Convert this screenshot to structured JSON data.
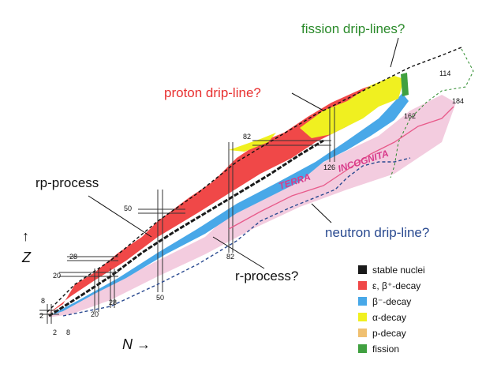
{
  "labels": {
    "fission_driplines": "fission drip-lines?",
    "proton_dripline": "proton drip-line?",
    "neutron_dripline": "neutron drip-line?",
    "rp_process": "rp-process",
    "r_process": "r-process?",
    "terra": "TERRA",
    "incognita": "INCOGNITA",
    "z_axis": "Z",
    "n_axis": "N →",
    "up_arrow": "↑"
  },
  "magic_labels": {
    "z": [
      "2",
      "8",
      "20",
      "28",
      "50",
      "82",
      "114"
    ],
    "n": [
      "2",
      "8",
      "20",
      "28",
      "50",
      "82",
      "126",
      "162",
      "184"
    ]
  },
  "legend": [
    {
      "label": "stable nuclei",
      "color": "#1a1a1a"
    },
    {
      "label": "ε, β⁺-decay",
      "color": "#f04848"
    },
    {
      "label": "β⁻-decay",
      "color": "#48a8e8"
    },
    {
      "label": "α-decay",
      "color": "#f0f020"
    },
    {
      "label": "p-decay",
      "color": "#f0c070"
    },
    {
      "label": "fission",
      "color": "#40a040"
    }
  ],
  "colors": {
    "label_green": "#2a8a2a",
    "label_red": "#e83030",
    "label_blue": "#2a4a90",
    "terra_pink": "#d83a8a",
    "terra_fill": "#f2c6dc",
    "red": "#f04848",
    "blue": "#48a8e8",
    "yellow": "#f0f020",
    "stable": "#1a1a1a",
    "fission": "#40a040"
  }
}
